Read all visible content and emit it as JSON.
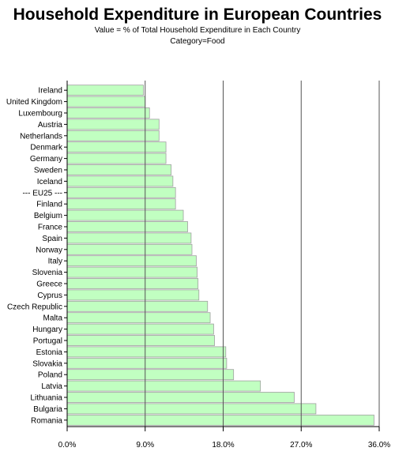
{
  "chart_data": {
    "type": "bar",
    "orientation": "horizontal",
    "title": "Household Expenditure in European Countries",
    "subtitle": "Value = % of Total Household Expenditure in Each Country",
    "subtitle2": "Category=Food",
    "categories": [
      "Ireland",
      "United Kingdom",
      "Luxembourg",
      "Austria",
      "Netherlands",
      "Denmark",
      "Germany",
      "Sweden",
      "Iceland",
      "--- EU25 ---",
      "Finland",
      "Belgium",
      "France",
      "Spain",
      "Norway",
      "Italy",
      "Slovenia",
      "Greece",
      "Cyprus",
      "Czech Republic",
      "Malta",
      "Hungary",
      "Portugal",
      "Estonia",
      "Slovakia",
      "Poland",
      "Latvia",
      "Lithuania",
      "Bulgaria",
      "Romania"
    ],
    "values": [
      8.8,
      9.0,
      9.5,
      10.6,
      10.6,
      11.4,
      11.4,
      12.0,
      12.2,
      12.5,
      12.5,
      13.4,
      13.9,
      14.3,
      14.4,
      14.9,
      15.0,
      15.1,
      15.2,
      16.2,
      16.5,
      16.9,
      17.0,
      18.3,
      18.4,
      19.2,
      22.3,
      26.2,
      28.7,
      35.4
    ],
    "x_ticks": [
      "0.0%",
      "9.0%",
      "18.0%",
      "27.0%",
      "36.0%"
    ],
    "xlim": [
      0,
      36
    ],
    "bar_color": "#c1ffc1",
    "bar_border_color": "#a0a0a0",
    "grid": true
  }
}
